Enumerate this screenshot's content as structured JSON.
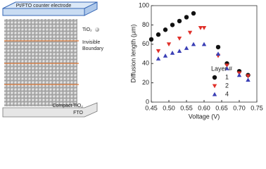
{
  "diagram": {
    "top_electrode": "Pt/FTO counter electrode",
    "particle_label": "TiO₂",
    "boundary_label": [
      "Invisible",
      "Boundary"
    ],
    "bottom_layers": [
      "Compact TiO₂",
      "FTO"
    ]
  },
  "chart_data": {
    "type": "scatter",
    "x_label": "Voltage (V)",
    "y_label": "Diffusion length (μm)",
    "xlim": [
      0.45,
      0.75
    ],
    "xticks": [
      0.45,
      {
        "value": 0.5,
        "label": "0.50"
      },
      0.55,
      {
        "value": 0.6,
        "label": "0.60"
      },
      0.65,
      {
        "value": 0.7,
        "label": "0.70"
      },
      0.75
    ],
    "ylim": [
      0,
      100
    ],
    "yticks": [
      0,
      20,
      40,
      60,
      80,
      100
    ],
    "legend_title": "Layer #",
    "legend": "right",
    "series": [
      {
        "name": "1",
        "color": "#111111",
        "marker": "circle",
        "x": [
          0.45,
          0.47,
          0.49,
          0.51,
          0.53,
          0.55,
          0.57,
          0.64,
          0.665,
          0.7,
          0.725
        ],
        "values": [
          65,
          70,
          75,
          80,
          84,
          88,
          92,
          57,
          40,
          32,
          28
        ]
      },
      {
        "name": "2",
        "color": "#e0302a",
        "marker": "triangle-down",
        "x": [
          0.47,
          0.5,
          0.53,
          0.56,
          0.59,
          0.6,
          0.64,
          0.665,
          0.7,
          0.725
        ],
        "values": [
          53,
          60,
          66,
          72,
          77,
          77,
          48,
          38,
          30,
          27
        ]
      },
      {
        "name": "4",
        "color": "#3a3fb5",
        "marker": "triangle-up",
        "x": [
          0.47,
          0.49,
          0.51,
          0.53,
          0.55,
          0.57,
          0.6,
          0.64,
          0.665,
          0.7,
          0.725
        ],
        "values": [
          45,
          48,
          51,
          53,
          56,
          60,
          60,
          50,
          35,
          28,
          23
        ]
      }
    ]
  }
}
